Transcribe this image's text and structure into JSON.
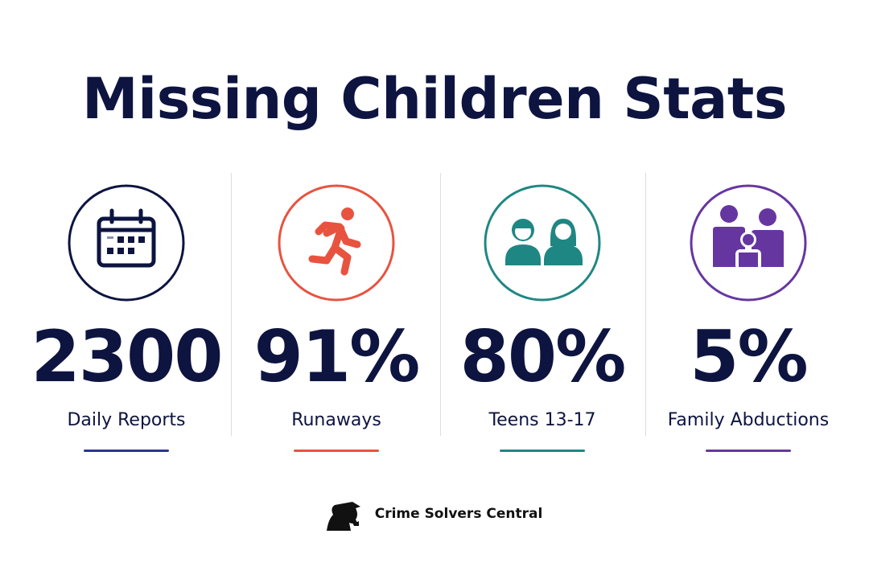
{
  "title": "Missing Children Stats",
  "stats": [
    {
      "value": "2300",
      "label": "Daily Reports",
      "color": "#2a3590"
    },
    {
      "value": "91%",
      "label": "Runaways",
      "color": "#e8533f"
    },
    {
      "value": "80%",
      "label": "Teens 13-17",
      "color": "#1f8783"
    },
    {
      "value": "5%",
      "label": "Family Abductions",
      "color": "#6636a0"
    }
  ],
  "footer": {
    "brand": "Crime Solvers Central"
  }
}
